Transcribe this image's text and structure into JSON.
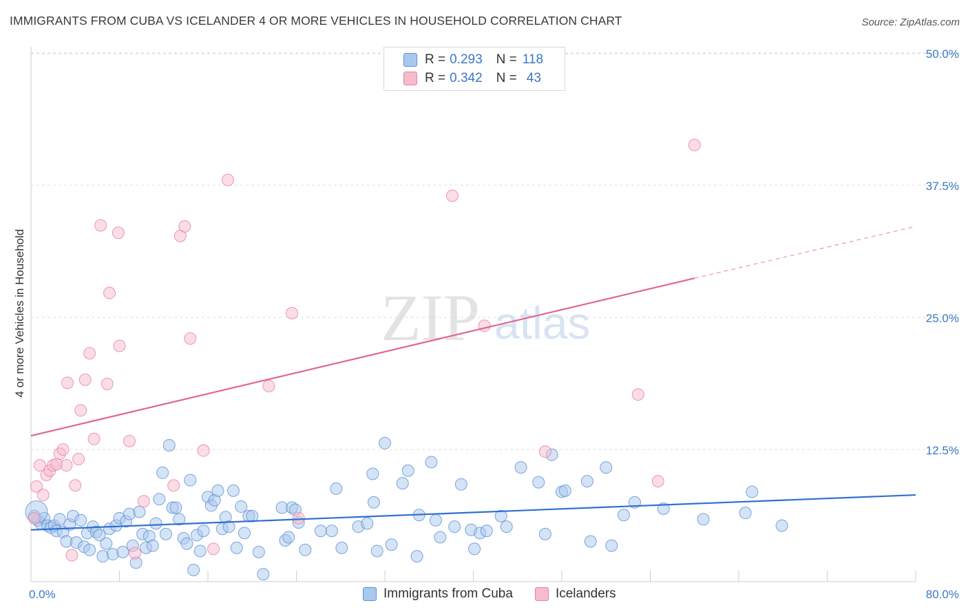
{
  "header": {
    "title": "IMMIGRANTS FROM CUBA VS ICELANDER 4 OR MORE VEHICLES IN HOUSEHOLD CORRELATION CHART",
    "source": "Source: ZipAtlas.com"
  },
  "legend": {
    "rows": [
      {
        "r_label": "R =",
        "r_value": "0.293",
        "n_label": "N =",
        "n_value": "118"
      },
      {
        "r_label": "R =",
        "r_value": "0.342",
        "n_label": "N =",
        "n_value": "43"
      }
    ]
  },
  "watermark": {
    "zip": "ZIP",
    "atlas": "atlas"
  },
  "colors": {
    "cuba_fill": "#a9c8ee",
    "cuba_stroke": "#5b90d6",
    "cuba_line": "#2f6fcf",
    "iceland_fill": "#f6bccd",
    "iceland_stroke": "#e8809f",
    "iceland_line": "#e06690",
    "axis_label": "#3a78c6",
    "grid": "#dddddd"
  },
  "chart_data": {
    "type": "scatter",
    "title": "IMMIGRANTS FROM CUBA VS ICELANDER 4 OR MORE VEHICLES IN HOUSEHOLD CORRELATION CHART",
    "xlabel": "",
    "ylabel": "4 or more Vehicles in Household",
    "xlim": [
      0,
      80
    ],
    "ylim": [
      0,
      50
    ],
    "x_tick_labels": [
      "0.0%",
      "80.0%"
    ],
    "y_ticks": [
      12.5,
      25.0,
      37.5,
      50.0
    ],
    "y_tick_labels": [
      "12.5%",
      "25.0%",
      "37.5%",
      "50.0%"
    ],
    "grid": true,
    "legend_position": "top-center",
    "series": [
      {
        "name": "Immigrants from Cuba",
        "r": 0.293,
        "n": 118,
        "trend": {
          "x0": 0,
          "y0": 4.9,
          "x1": 80,
          "y1": 8.2
        },
        "points": [
          [
            0.3,
            6.2
          ],
          [
            0.6,
            5.8
          ],
          [
            0.9,
            5.5
          ],
          [
            1.2,
            6.0
          ],
          [
            1.5,
            5.3
          ],
          [
            1.8,
            5.1
          ],
          [
            2.1,
            5.3
          ],
          [
            2.3,
            4.8
          ],
          [
            2.6,
            5.9
          ],
          [
            2.9,
            4.7
          ],
          [
            3.2,
            3.8
          ],
          [
            3.5,
            5.4
          ],
          [
            3.8,
            6.2
          ],
          [
            4.1,
            3.7
          ],
          [
            4.5,
            5.8
          ],
          [
            4.8,
            3.3
          ],
          [
            5.1,
            4.6
          ],
          [
            5.3,
            3.0
          ],
          [
            5.6,
            5.2
          ],
          [
            5.9,
            4.7
          ],
          [
            6.2,
            4.4
          ],
          [
            6.5,
            2.4
          ],
          [
            6.8,
            3.6
          ],
          [
            7.1,
            5.0
          ],
          [
            7.4,
            2.6
          ],
          [
            7.7,
            5.3
          ],
          [
            8.0,
            6.0
          ],
          [
            8.3,
            2.8
          ],
          [
            8.6,
            5.7
          ],
          [
            8.9,
            6.4
          ],
          [
            9.2,
            3.4
          ],
          [
            9.5,
            1.8
          ],
          [
            9.8,
            6.6
          ],
          [
            10.1,
            4.5
          ],
          [
            10.4,
            3.2
          ],
          [
            10.7,
            4.3
          ],
          [
            11.0,
            3.4
          ],
          [
            11.3,
            5.5
          ],
          [
            11.6,
            7.8
          ],
          [
            11.9,
            10.3
          ],
          [
            12.2,
            4.5
          ],
          [
            12.5,
            12.9
          ],
          [
            12.8,
            7.0
          ],
          [
            13.1,
            7.0
          ],
          [
            13.4,
            5.9
          ],
          [
            13.8,
            4.1
          ],
          [
            14.1,
            3.6
          ],
          [
            14.4,
            9.6
          ],
          [
            14.7,
            1.1
          ],
          [
            15.0,
            4.4
          ],
          [
            15.3,
            2.9
          ],
          [
            15.6,
            4.8
          ],
          [
            16.0,
            8.0
          ],
          [
            16.3,
            7.2
          ],
          [
            16.6,
            7.7
          ],
          [
            16.9,
            8.6
          ],
          [
            17.3,
            5.0
          ],
          [
            17.6,
            6.1
          ],
          [
            17.9,
            5.2
          ],
          [
            18.3,
            8.6
          ],
          [
            18.6,
            3.2
          ],
          [
            19.0,
            7.1
          ],
          [
            19.3,
            4.6
          ],
          [
            19.7,
            6.2
          ],
          [
            20.0,
            6.2
          ],
          [
            20.6,
            2.8
          ],
          [
            21.0,
            0.7
          ],
          [
            22.7,
            7.0
          ],
          [
            23.0,
            3.9
          ],
          [
            23.3,
            4.2
          ],
          [
            23.6,
            7.0
          ],
          [
            23.9,
            6.8
          ],
          [
            24.2,
            5.6
          ],
          [
            24.8,
            3.0
          ],
          [
            26.2,
            4.8
          ],
          [
            27.2,
            4.8
          ],
          [
            27.6,
            8.8
          ],
          [
            28.1,
            3.2
          ],
          [
            29.6,
            5.2
          ],
          [
            30.4,
            5.5
          ],
          [
            30.9,
            10.2
          ],
          [
            31.0,
            7.5
          ],
          [
            31.3,
            2.9
          ],
          [
            32.0,
            13.1
          ],
          [
            32.6,
            3.5
          ],
          [
            33.6,
            9.3
          ],
          [
            34.1,
            10.5
          ],
          [
            34.9,
            2.4
          ],
          [
            35.1,
            6.3
          ],
          [
            36.2,
            11.3
          ],
          [
            36.6,
            5.8
          ],
          [
            37.0,
            4.2
          ],
          [
            38.3,
            5.2
          ],
          [
            38.9,
            9.2
          ],
          [
            39.8,
            4.9
          ],
          [
            40.1,
            3.1
          ],
          [
            40.6,
            4.6
          ],
          [
            41.2,
            4.8
          ],
          [
            42.5,
            6.2
          ],
          [
            43.0,
            5.2
          ],
          [
            44.3,
            10.8
          ],
          [
            45.9,
            9.4
          ],
          [
            46.5,
            4.5
          ],
          [
            47.1,
            12.0
          ],
          [
            48.0,
            8.5
          ],
          [
            48.3,
            8.6
          ],
          [
            50.3,
            9.5
          ],
          [
            50.6,
            3.8
          ],
          [
            52.0,
            10.8
          ],
          [
            52.5,
            3.4
          ],
          [
            53.6,
            6.3
          ],
          [
            54.6,
            7.5
          ],
          [
            57.2,
            6.9
          ],
          [
            60.8,
            5.9
          ],
          [
            64.6,
            6.5
          ],
          [
            65.2,
            8.5
          ],
          [
            67.9,
            5.3
          ],
          [
            0.5,
            6.6
          ]
        ]
      },
      {
        "name": "Icelanders",
        "r": 0.342,
        "n": 43,
        "trend": {
          "x0": 0,
          "y0": 13.8,
          "x1": 60,
          "y1": 28.7,
          "x1_dash": 80,
          "y1_dash": 33.6
        },
        "points": [
          [
            0.3,
            6.0
          ],
          [
            0.5,
            9.0
          ],
          [
            0.8,
            11.0
          ],
          [
            1.1,
            8.2
          ],
          [
            1.4,
            10.1
          ],
          [
            1.7,
            10.5
          ],
          [
            2.0,
            11.0
          ],
          [
            2.3,
            11.1
          ],
          [
            2.6,
            12.1
          ],
          [
            2.9,
            12.5
          ],
          [
            3.2,
            11.0
          ],
          [
            3.3,
            18.8
          ],
          [
            3.7,
            2.5
          ],
          [
            4.0,
            9.1
          ],
          [
            4.3,
            11.6
          ],
          [
            4.5,
            16.2
          ],
          [
            4.9,
            19.1
          ],
          [
            5.3,
            21.6
          ],
          [
            5.7,
            13.5
          ],
          [
            6.3,
            33.7
          ],
          [
            6.9,
            18.7
          ],
          [
            7.1,
            27.3
          ],
          [
            7.9,
            33.0
          ],
          [
            8.0,
            22.3
          ],
          [
            8.9,
            13.3
          ],
          [
            9.4,
            2.7
          ],
          [
            10.2,
            7.6
          ],
          [
            12.9,
            9.1
          ],
          [
            13.5,
            32.7
          ],
          [
            13.9,
            33.6
          ],
          [
            14.4,
            23.0
          ],
          [
            15.6,
            12.4
          ],
          [
            16.5,
            3.1
          ],
          [
            17.8,
            38.0
          ],
          [
            21.5,
            18.5
          ],
          [
            23.6,
            25.4
          ],
          [
            24.2,
            6.0
          ],
          [
            38.1,
            36.5
          ],
          [
            41.0,
            24.2
          ],
          [
            46.5,
            12.3
          ],
          [
            54.9,
            17.7
          ],
          [
            56.7,
            9.5
          ],
          [
            60.0,
            41.3
          ]
        ]
      }
    ]
  }
}
